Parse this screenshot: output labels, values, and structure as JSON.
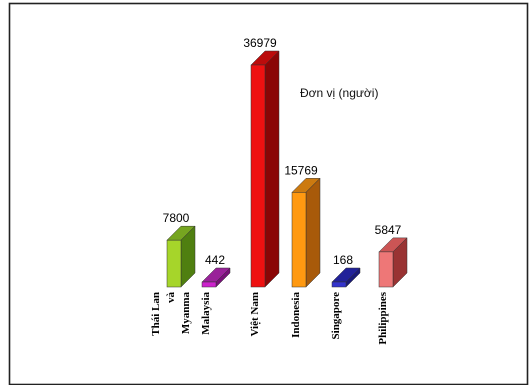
{
  "chart_data": {
    "type": "bar",
    "categories": [
      "Thái Lan và Myanma",
      "Malaysia",
      "Việt Nam",
      "Indonesia",
      "Singapore",
      "Philippines"
    ],
    "category_lines": [
      [
        "Thái Lan",
        "và",
        "Myanma"
      ],
      [
        "Malaysia"
      ],
      [
        "Việt Nam"
      ],
      [
        "Indonesia"
      ],
      [
        "Singapore"
      ],
      [
        "Philippines"
      ]
    ],
    "values": [
      7800,
      442,
      36979,
      15769,
      168,
      5847
    ],
    "value_labels": [
      "7800",
      "442",
      "36979",
      "15769",
      "168",
      "5847"
    ],
    "title": "",
    "unit_note": "Đơn vị (người)",
    "xlabel": "",
    "ylabel": "",
    "ylim": [
      0,
      36979
    ],
    "three_d": true,
    "grid": false,
    "legend": "none",
    "colors": {
      "front": [
        "#a6d52a",
        "#cc22cc",
        "#ee1111",
        "#ff9911",
        "#3333cc",
        "#ee7777"
      ],
      "side": [
        "#4f7f10",
        "#771177",
        "#8a0606",
        "#a85a0a",
        "#1a1a77",
        "#993333"
      ],
      "top": [
        "#76a520",
        "#992299",
        "#bb0c0c",
        "#cc7a10",
        "#222299",
        "#cc5555"
      ]
    }
  }
}
